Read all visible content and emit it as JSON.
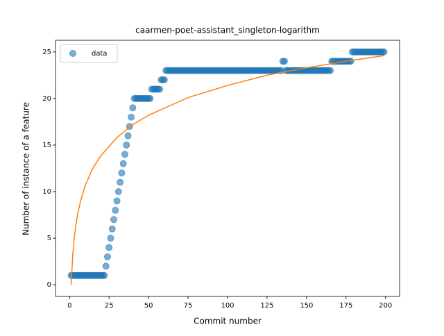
{
  "chart_data": {
    "type": "scatter",
    "title": "caarmen-poet-assistant_singleton-logarithm",
    "xlabel": "Commit number",
    "ylabel": "Number of instance of a feature",
    "xlim": [
      -8.9,
      208.9
    ],
    "ylim": [
      -1.25,
      26.25
    ],
    "xticks": [
      0,
      25,
      50,
      75,
      100,
      125,
      150,
      175,
      200
    ],
    "yticks": [
      0,
      5,
      10,
      15,
      20,
      25
    ],
    "legend": "upper left",
    "series": [
      {
        "name": "data",
        "type": "scatter",
        "color": "#1f77b4",
        "x": [
          1,
          2,
          3,
          4,
          5,
          6,
          7,
          8,
          9,
          10,
          11,
          12,
          13,
          14,
          15,
          16,
          17,
          18,
          19,
          20,
          21,
          22,
          23,
          24,
          25,
          26,
          27,
          28,
          29,
          30,
          31,
          32,
          33,
          34,
          35,
          36,
          37,
          38,
          39,
          40,
          41,
          42,
          43,
          44,
          45,
          46,
          47,
          48,
          49,
          50,
          51,
          52,
          53,
          54,
          55,
          56,
          57,
          58,
          59,
          60,
          61,
          62,
          63,
          64,
          65,
          66,
          67,
          68,
          69,
          70,
          71,
          72,
          73,
          74,
          75,
          76,
          77,
          78,
          79,
          80,
          81,
          82,
          83,
          84,
          85,
          86,
          87,
          88,
          89,
          90,
          91,
          92,
          93,
          94,
          95,
          96,
          97,
          98,
          99,
          100,
          101,
          102,
          103,
          104,
          105,
          106,
          107,
          108,
          109,
          110,
          111,
          112,
          113,
          114,
          115,
          116,
          117,
          118,
          119,
          120,
          121,
          122,
          123,
          124,
          125,
          126,
          127,
          128,
          129,
          130,
          131,
          132,
          133,
          134,
          135,
          136,
          137,
          138,
          139,
          140,
          141,
          142,
          143,
          144,
          145,
          146,
          147,
          148,
          149,
          150,
          151,
          152,
          153,
          154,
          155,
          156,
          157,
          158,
          159,
          160,
          161,
          162,
          163,
          164,
          165,
          166,
          167,
          168,
          169,
          170,
          171,
          172,
          173,
          174,
          175,
          176,
          177,
          178,
          179,
          180,
          181,
          182,
          183,
          184,
          185,
          186,
          187,
          188,
          189,
          190,
          191,
          192,
          193,
          194,
          195,
          196,
          197,
          198,
          199
        ],
        "values": [
          1,
          1,
          1,
          1,
          1,
          1,
          1,
          1,
          1,
          1,
          1,
          1,
          1,
          1,
          1,
          1,
          1,
          1,
          1,
          1,
          1,
          1,
          2,
          3,
          4,
          5,
          6,
          7,
          8,
          9,
          10,
          11,
          12,
          13,
          14,
          15,
          16,
          17,
          18,
          19,
          20,
          20,
          20,
          20,
          20,
          20,
          20,
          20,
          20,
          20,
          20,
          21,
          21,
          21,
          21,
          21,
          21,
          22,
          22,
          22,
          23,
          23,
          23,
          23,
          23,
          23,
          23,
          23,
          23,
          23,
          23,
          23,
          23,
          23,
          23,
          23,
          23,
          23,
          23,
          23,
          23,
          23,
          23,
          23,
          23,
          23,
          23,
          23,
          23,
          23,
          23,
          23,
          23,
          23,
          23,
          23,
          23,
          23,
          23,
          23,
          23,
          23,
          23,
          23,
          23,
          23,
          23,
          23,
          23,
          23,
          23,
          23,
          23,
          23,
          23,
          23,
          23,
          23,
          23,
          23,
          23,
          23,
          23,
          23,
          23,
          23,
          23,
          23,
          23,
          23,
          23,
          23,
          23,
          23,
          24,
          24,
          23,
          23,
          23,
          23,
          23,
          23,
          23,
          23,
          23,
          23,
          23,
          23,
          23,
          23,
          23,
          23,
          23,
          23,
          23,
          23,
          23,
          23,
          23,
          23,
          23,
          23,
          23,
          23,
          23,
          24,
          24,
          24,
          24,
          24,
          24,
          24,
          24,
          24,
          24,
          24,
          24,
          24,
          25,
          25,
          25,
          25,
          25,
          25,
          25,
          25,
          25,
          25,
          25,
          25,
          25,
          25,
          25,
          25,
          25,
          25,
          25,
          25,
          25
        ]
      },
      {
        "type": "line",
        "color": "#ff7f0e",
        "x": [
          1,
          2,
          3,
          4,
          5,
          7,
          10,
          15,
          20,
          30,
          40,
          50,
          75,
          100,
          125,
          150,
          175,
          199
        ],
        "values": [
          0,
          3.2,
          5.1,
          6.4,
          7.5,
          9.0,
          10.7,
          12.6,
          13.9,
          15.8,
          17.2,
          18.2,
          20.1,
          21.4,
          22.5,
          23.3,
          24.0,
          24.6
        ]
      }
    ]
  }
}
